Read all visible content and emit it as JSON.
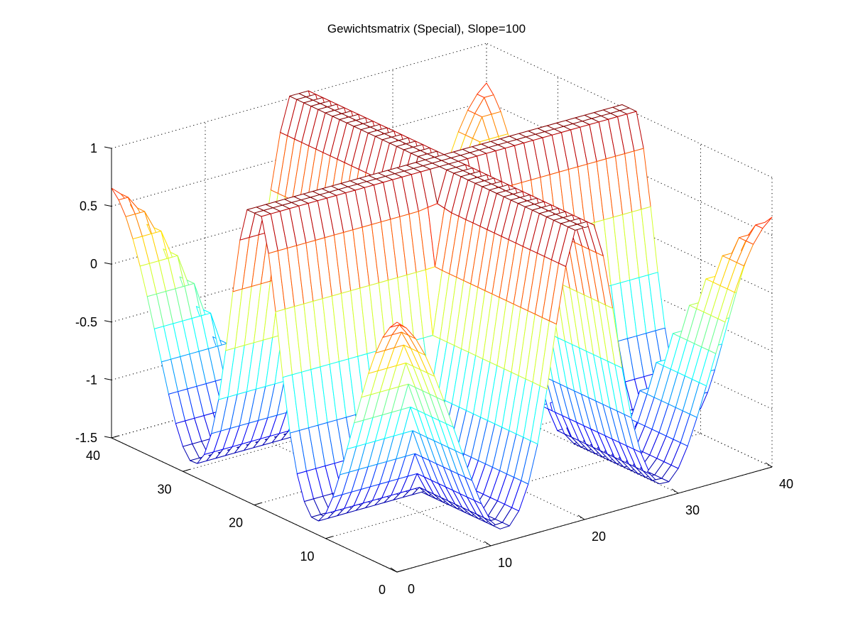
{
  "chart_data": {
    "type": "mesh3d",
    "title": "Gewichtsmatrix (Special), Slope=100",
    "xlabel": "",
    "ylabel": "",
    "zlabel": "",
    "x_ticks": [
      "0",
      "10",
      "20",
      "30",
      "40"
    ],
    "y_ticks": [
      "0",
      "10",
      "20",
      "30",
      "40"
    ],
    "z_ticks": [
      "-1.5",
      "-1",
      "-0.5",
      "0",
      "0.5",
      "1"
    ],
    "xlim": [
      0,
      40
    ],
    "ylim": [
      0,
      40
    ],
    "zlim": [
      -1.5,
      1
    ],
    "grid": true,
    "colormap": "jet",
    "mesh_size": 41,
    "surface": "Ridges of height 1 along x = 20 and y = 20 (steep sigmoid walls, slope 100); off-ridge the surface dips to about -1.4 near distance 8 from each ridge and rises again toward the four corners (about 0.7 at the far corners).",
    "sample_points": [
      {
        "x": 20,
        "y": 20,
        "z": 1.0
      },
      {
        "x": 0,
        "y": 0,
        "z": 0.72
      },
      {
        "x": 40,
        "y": 40,
        "z": 0.72
      },
      {
        "x": 0,
        "y": 40,
        "z": 0.72
      },
      {
        "x": 40,
        "y": 0,
        "z": 0.72
      },
      {
        "x": 12,
        "y": 12,
        "z": -1.4
      },
      {
        "x": 28,
        "y": 28,
        "z": -1.4
      },
      {
        "x": 5,
        "y": 5,
        "z": -0.28
      },
      {
        "x": 20,
        "y": 5,
        "z": 1.0
      },
      {
        "x": 5,
        "y": 20,
        "z": 1.0
      }
    ]
  }
}
